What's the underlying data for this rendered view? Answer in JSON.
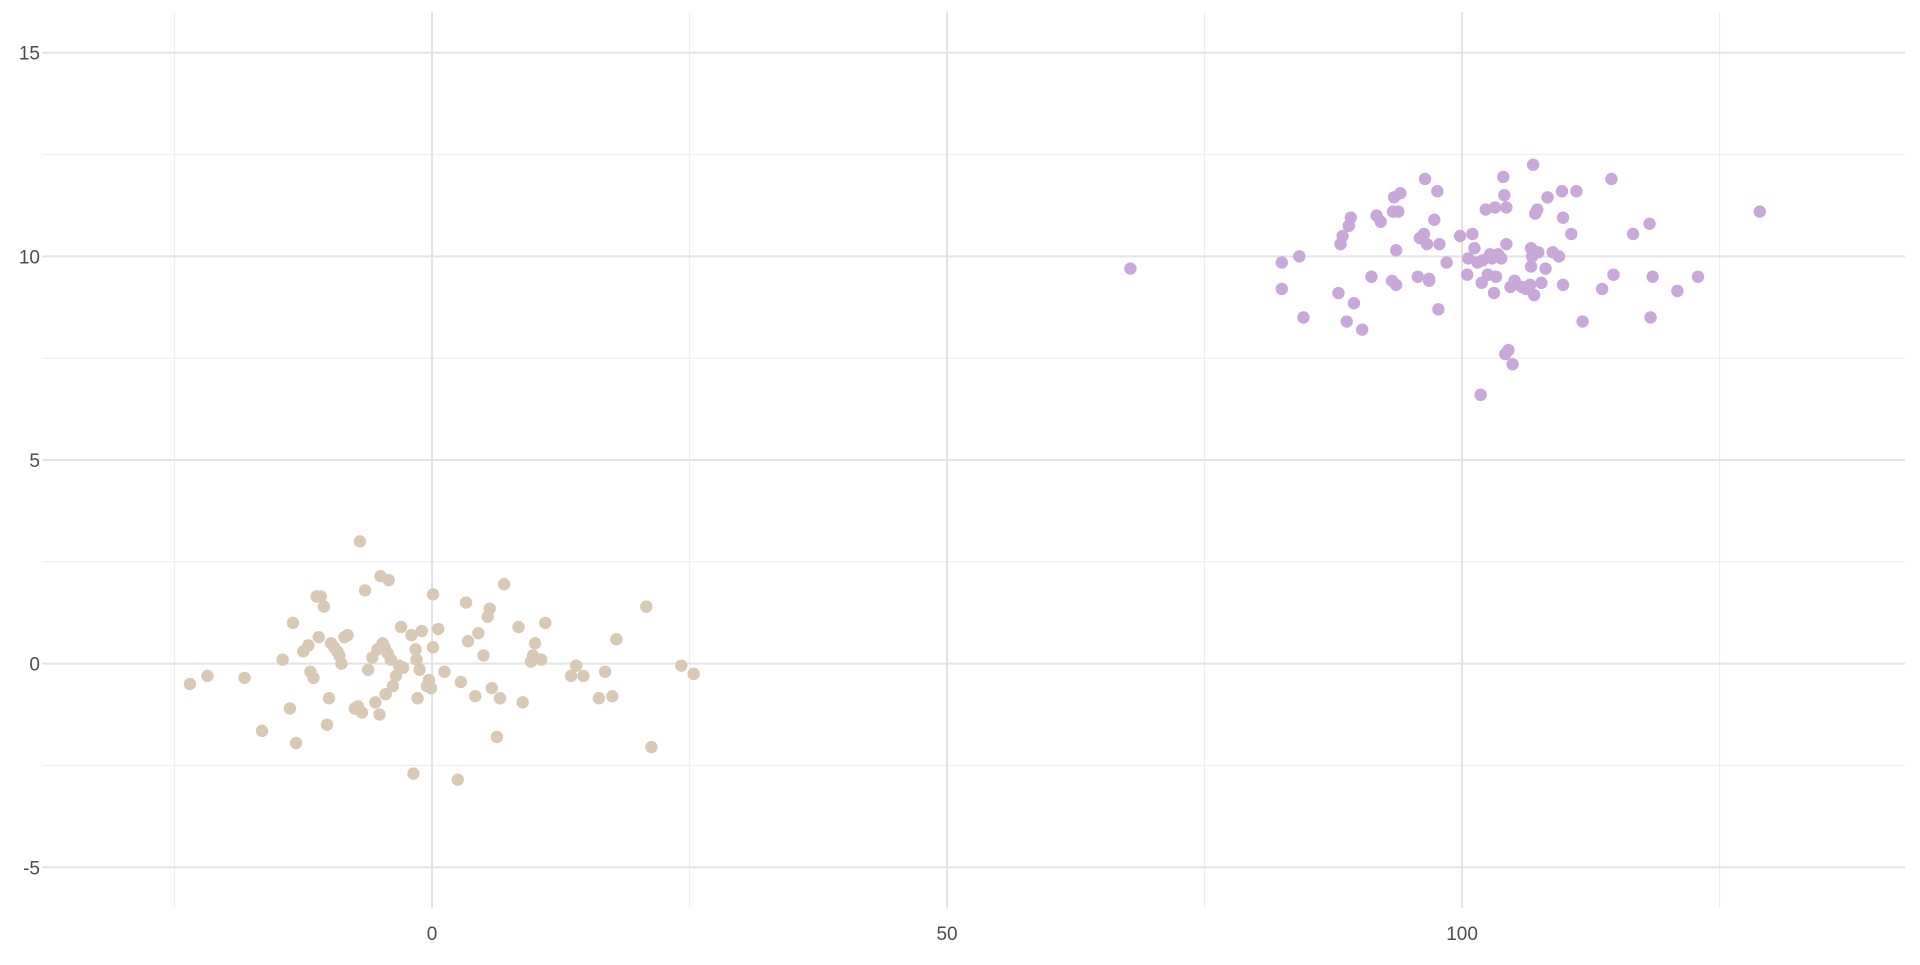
{
  "chart_data": {
    "type": "scatter",
    "title": "",
    "xlabel": "",
    "ylabel": "",
    "xlim": [
      -40,
      143
    ],
    "ylim": [
      -6,
      16
    ],
    "x_major_ticks": [
      0,
      50,
      100
    ],
    "x_minor_ticks": [
      -25,
      25,
      75,
      125
    ],
    "y_major_ticks": [
      -5,
      0,
      5,
      10,
      15
    ],
    "y_minor_ticks": [
      -2.5,
      2.5,
      7.5,
      12.5
    ],
    "x_tick_labels": [
      "0",
      "50",
      "100"
    ],
    "y_tick_labels": [
      "-5",
      "0",
      "5",
      "10",
      "15"
    ],
    "grid": true,
    "legend": "none",
    "series": [
      {
        "color": "#d8c8b6",
        "points": [
          [
            -23.5,
            -0.5
          ],
          [
            -21.8,
            -0.3
          ],
          [
            -18.2,
            -0.35
          ],
          [
            -16.5,
            -1.65
          ],
          [
            -14.5,
            0.1
          ],
          [
            -13.8,
            -1.1
          ],
          [
            -13.5,
            1.0
          ],
          [
            -13.2,
            -1.95
          ],
          [
            -12.5,
            0.3
          ],
          [
            -12.0,
            0.45
          ],
          [
            -11.8,
            -0.2
          ],
          [
            -11.5,
            -0.35
          ],
          [
            -11.2,
            1.65
          ],
          [
            -11.0,
            0.65
          ],
          [
            -10.8,
            1.65
          ],
          [
            -10.5,
            1.4
          ],
          [
            -10.2,
            -1.5
          ],
          [
            -10.0,
            -0.85
          ],
          [
            -9.8,
            0.5
          ],
          [
            -9.5,
            0.4
          ],
          [
            -9.2,
            0.3
          ],
          [
            -9.0,
            0.2
          ],
          [
            -8.8,
            0.0
          ],
          [
            -8.5,
            0.65
          ],
          [
            -8.2,
            0.7
          ],
          [
            -7.5,
            -1.1
          ],
          [
            -7.2,
            -1.05
          ],
          [
            -7.0,
            3.0
          ],
          [
            -6.8,
            -1.2
          ],
          [
            -6.5,
            1.8
          ],
          [
            -6.2,
            -0.15
          ],
          [
            -5.8,
            0.15
          ],
          [
            -5.5,
            -0.95
          ],
          [
            -5.3,
            0.35
          ],
          [
            -5.1,
            -1.25
          ],
          [
            -5.0,
            2.15
          ],
          [
            -4.8,
            0.5
          ],
          [
            -4.6,
            0.4
          ],
          [
            -4.5,
            -0.75
          ],
          [
            -4.3,
            0.25
          ],
          [
            -4.2,
            2.05
          ],
          [
            -4.0,
            0.1
          ],
          [
            -3.8,
            -0.55
          ],
          [
            -3.5,
            -0.3
          ],
          [
            -3.2,
            -0.05
          ],
          [
            -3.0,
            0.9
          ],
          [
            -2.8,
            -0.1
          ],
          [
            -2.0,
            0.7
          ],
          [
            -1.8,
            -2.7
          ],
          [
            -1.6,
            0.35
          ],
          [
            -1.5,
            0.1
          ],
          [
            -1.4,
            -0.85
          ],
          [
            -1.2,
            -0.15
          ],
          [
            -1.0,
            0.8
          ],
          [
            -0.5,
            -0.55
          ],
          [
            -0.3,
            -0.4
          ],
          [
            -0.1,
            -0.6
          ],
          [
            0.1,
            0.4
          ],
          [
            0.1,
            1.7
          ],
          [
            0.6,
            0.85
          ],
          [
            1.2,
            -0.2
          ],
          [
            2.5,
            -2.85
          ],
          [
            2.8,
            -0.45
          ],
          [
            3.3,
            1.5
          ],
          [
            3.5,
            0.55
          ],
          [
            4.2,
            -0.8
          ],
          [
            4.5,
            0.75
          ],
          [
            5.0,
            0.2
          ],
          [
            5.4,
            1.15
          ],
          [
            5.6,
            1.35
          ],
          [
            5.8,
            -0.6
          ],
          [
            6.3,
            -1.8
          ],
          [
            6.6,
            -0.85
          ],
          [
            7.0,
            1.95
          ],
          [
            8.4,
            0.9
          ],
          [
            8.8,
            -0.95
          ],
          [
            9.6,
            0.05
          ],
          [
            9.8,
            0.2
          ],
          [
            10.0,
            0.5
          ],
          [
            10.6,
            0.1
          ],
          [
            11.0,
            1.0
          ],
          [
            13.5,
            -0.3
          ],
          [
            14.0,
            -0.05
          ],
          [
            14.7,
            -0.3
          ],
          [
            16.2,
            -0.85
          ],
          [
            16.8,
            -0.2
          ],
          [
            17.5,
            -0.8
          ],
          [
            17.9,
            0.6
          ],
          [
            20.8,
            1.4
          ],
          [
            21.3,
            -2.05
          ],
          [
            24.2,
            -0.05
          ],
          [
            25.4,
            -0.25
          ]
        ]
      },
      {
        "color": "#c8a8d8",
        "points": [
          [
            67.8,
            9.7
          ],
          [
            82.5,
            9.85
          ],
          [
            82.5,
            9.2
          ],
          [
            84.2,
            10.0
          ],
          [
            84.6,
            8.5
          ],
          [
            88.0,
            9.1
          ],
          [
            88.2,
            10.3
          ],
          [
            88.4,
            10.5
          ],
          [
            88.8,
            8.4
          ],
          [
            89.0,
            10.75
          ],
          [
            89.2,
            10.95
          ],
          [
            89.5,
            8.85
          ],
          [
            90.3,
            8.2
          ],
          [
            91.2,
            9.5
          ],
          [
            91.7,
            11.0
          ],
          [
            92.1,
            10.85
          ],
          [
            93.2,
            9.4
          ],
          [
            93.3,
            11.1
          ],
          [
            93.4,
            11.45
          ],
          [
            93.6,
            10.15
          ],
          [
            93.6,
            9.3
          ],
          [
            93.8,
            11.1
          ],
          [
            94.0,
            11.55
          ],
          [
            95.7,
            9.5
          ],
          [
            95.9,
            10.45
          ],
          [
            96.3,
            10.55
          ],
          [
            96.4,
            11.9
          ],
          [
            96.6,
            10.3
          ],
          [
            96.8,
            9.45
          ],
          [
            96.8,
            9.4
          ],
          [
            97.3,
            10.9
          ],
          [
            97.6,
            11.6
          ],
          [
            97.7,
            8.7
          ],
          [
            97.8,
            10.3
          ],
          [
            98.5,
            9.85
          ],
          [
            99.8,
            10.5
          ],
          [
            100.5,
            9.55
          ],
          [
            100.6,
            9.95
          ],
          [
            101.0,
            10.55
          ],
          [
            101.2,
            10.2
          ],
          [
            101.5,
            9.85
          ],
          [
            101.9,
            9.35
          ],
          [
            102.0,
            9.9
          ],
          [
            102.3,
            11.15
          ],
          [
            102.5,
            9.55
          ],
          [
            102.7,
            10.05
          ],
          [
            102.9,
            9.95
          ],
          [
            103.1,
            9.1
          ],
          [
            103.2,
            11.2
          ],
          [
            103.3,
            9.5
          ],
          [
            103.5,
            10.05
          ],
          [
            103.8,
            9.95
          ],
          [
            104.0,
            11.95
          ],
          [
            104.1,
            11.5
          ],
          [
            104.2,
            7.6
          ],
          [
            104.3,
            10.3
          ],
          [
            104.3,
            11.2
          ],
          [
            104.5,
            7.7
          ],
          [
            104.7,
            9.25
          ],
          [
            104.9,
            7.35
          ],
          [
            105.1,
            9.4
          ],
          [
            105.8,
            9.25
          ],
          [
            106.2,
            9.2
          ],
          [
            106.6,
            9.3
          ],
          [
            106.7,
            10.2
          ],
          [
            106.7,
            9.75
          ],
          [
            106.8,
            10.0
          ],
          [
            106.9,
            12.25
          ],
          [
            107.0,
            9.05
          ],
          [
            107.1,
            11.05
          ],
          [
            107.3,
            11.15
          ],
          [
            107.4,
            10.1
          ],
          [
            107.7,
            9.35
          ],
          [
            108.1,
            9.7
          ],
          [
            108.3,
            11.45
          ],
          [
            108.8,
            10.1
          ],
          [
            109.4,
            10.0
          ],
          [
            109.7,
            11.6
          ],
          [
            109.8,
            9.3
          ],
          [
            109.8,
            10.95
          ],
          [
            110.6,
            10.55
          ],
          [
            111.1,
            11.6
          ],
          [
            111.7,
            8.4
          ],
          [
            113.6,
            9.2
          ],
          [
            114.5,
            11.9
          ],
          [
            114.7,
            9.55
          ],
          [
            116.6,
            10.55
          ],
          [
            118.2,
            10.8
          ],
          [
            118.3,
            8.5
          ],
          [
            118.5,
            9.5
          ],
          [
            120.9,
            9.15
          ],
          [
            122.9,
            9.5
          ],
          [
            128.9,
            11.1
          ],
          [
            101.8,
            6.6
          ]
        ]
      }
    ]
  }
}
